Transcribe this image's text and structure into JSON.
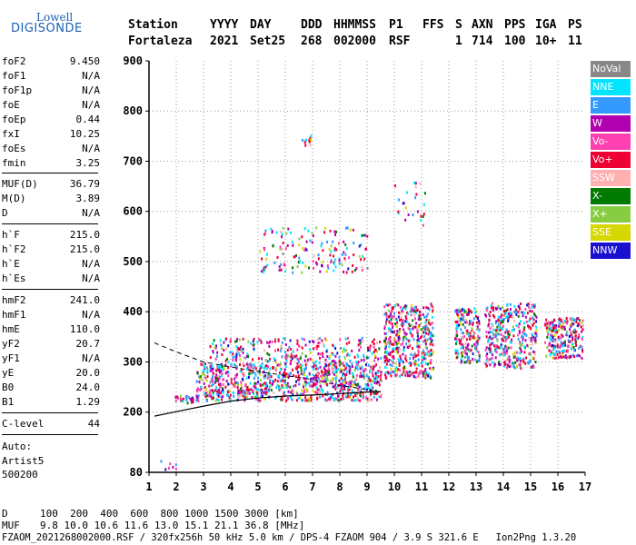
{
  "logo": {
    "line1": "Lowell",
    "line2": "DIGISONDE"
  },
  "header": {
    "columns": [
      "Station",
      "YYYY",
      "DAY",
      "DDD",
      "HHMMSS",
      "P1",
      "FFS",
      "S",
      "AXN",
      "PPS",
      "IGA",
      "PS"
    ],
    "values": [
      "Fortaleza",
      "2021",
      "Set25",
      "268",
      "002000",
      "RSF",
      "",
      "1",
      "714",
      "100",
      "10+",
      "11"
    ]
  },
  "parameters": {
    "group1": [
      {
        "name": "foF2",
        "value": "9.450"
      },
      {
        "name": "foF1",
        "value": "N/A"
      },
      {
        "name": "foF1p",
        "value": "N/A"
      },
      {
        "name": "foE",
        "value": "N/A"
      },
      {
        "name": "foEp",
        "value": "0.44"
      },
      {
        "name": "fxI",
        "value": "10.25"
      },
      {
        "name": "foEs",
        "value": "N/A"
      },
      {
        "name": "fmin",
        "value": "3.25"
      }
    ],
    "group2": [
      {
        "name": "MUF(D)",
        "value": "36.79"
      },
      {
        "name": "M(D)",
        "value": "3.89"
      },
      {
        "name": "D",
        "value": "N/A"
      }
    ],
    "group3": [
      {
        "name": "h`F",
        "value": "215.0"
      },
      {
        "name": "h`F2",
        "value": "215.0"
      },
      {
        "name": "h`E",
        "value": "N/A"
      },
      {
        "name": "h`Es",
        "value": "N/A"
      }
    ],
    "group4": [
      {
        "name": "hmF2",
        "value": "241.0"
      },
      {
        "name": "hmF1",
        "value": "N/A"
      },
      {
        "name": "hmE",
        "value": "110.0"
      },
      {
        "name": "yF2",
        "value": "20.7"
      },
      {
        "name": "yF1",
        "value": "N/A"
      },
      {
        "name": "yE",
        "value": "20.0"
      },
      {
        "name": "B0",
        "value": "24.0"
      },
      {
        "name": "B1",
        "value": "1.29"
      }
    ],
    "group5": [
      {
        "name": "C-level",
        "value": "44"
      }
    ]
  },
  "auto": {
    "line1": "Auto:",
    "line2": "Artist5",
    "line3": "500200"
  },
  "legend": [
    {
      "label": "NoVal",
      "color": "#888888"
    },
    {
      "label": "NNE",
      "color": "#00e5ff"
    },
    {
      "label": "E",
      "color": "#3399ff"
    },
    {
      "label": "W",
      "color": "#b000b0"
    },
    {
      "label": "Vo-",
      "color": "#ff40b0"
    },
    {
      "label": "Vo+",
      "color": "#ee0033"
    },
    {
      "label": "SSW",
      "color": "#ffb0b0"
    },
    {
      "label": "X-",
      "color": "#007a00"
    },
    {
      "label": "X+",
      "color": "#88cc44"
    },
    {
      "label": "SSE",
      "color": "#d6d600"
    },
    {
      "label": "NNW",
      "color": "#1a10d0"
    }
  ],
  "chart_data": {
    "type": "scatter",
    "xlim": [
      1,
      17
    ],
    "ylim": [
      80,
      900
    ],
    "x_ticks": [
      1,
      2,
      3,
      4,
      5,
      6,
      7,
      8,
      9,
      10,
      11,
      12,
      13,
      14,
      15,
      16,
      17
    ],
    "y_ticks": [
      80,
      200,
      300,
      400,
      500,
      600,
      700,
      800,
      900
    ],
    "grid": "dotted",
    "echo_regions": [
      {
        "x": [
          2.7,
          9.5
        ],
        "y": [
          225,
          300
        ],
        "density": 900
      },
      {
        "x": [
          3.2,
          9.5
        ],
        "y": [
          300,
          350
        ],
        "density": 260
      },
      {
        "x": [
          5.0,
          9.0
        ],
        "y": [
          480,
          570
        ],
        "density": 160
      },
      {
        "x": [
          6.6,
          7.0
        ],
        "y": [
          725,
          755
        ],
        "density": 12
      },
      {
        "x": [
          9.6,
          11.4
        ],
        "y": [
          270,
          420
        ],
        "density": 450
      },
      {
        "x": [
          10.0,
          11.1
        ],
        "y": [
          570,
          660
        ],
        "density": 25
      },
      {
        "x": [
          12.2,
          13.1
        ],
        "y": [
          300,
          410
        ],
        "density": 200
      },
      {
        "x": [
          13.3,
          15.2
        ],
        "y": [
          290,
          420
        ],
        "density": 380
      },
      {
        "x": [
          15.5,
          16.9
        ],
        "y": [
          310,
          390
        ],
        "density": 240
      },
      {
        "x": [
          3.4,
          5.3
        ],
        "y": [
          240,
          247
        ],
        "density": 30
      },
      {
        "x": [
          1.9,
          2.6
        ],
        "y": [
          220,
          235
        ],
        "density": 25
      },
      {
        "x": [
          1.4,
          2.0
        ],
        "y": [
          82,
          105
        ],
        "density": 8
      }
    ],
    "profile_curve_dashed": [
      [
        1.2,
        338
      ],
      [
        2,
        320
      ],
      [
        3,
        300
      ],
      [
        4,
        290
      ],
      [
        5,
        281
      ],
      [
        6,
        273
      ],
      [
        7,
        265
      ],
      [
        8,
        253
      ],
      [
        9,
        245
      ],
      [
        9.5,
        240
      ]
    ],
    "profile_curve_solid": [
      [
        1.2,
        192
      ],
      [
        2,
        201
      ],
      [
        3,
        212
      ],
      [
        4,
        222
      ],
      [
        5,
        228
      ],
      [
        6,
        232
      ],
      [
        7,
        234
      ],
      [
        8,
        237
      ],
      [
        9,
        240
      ],
      [
        9.5,
        241
      ]
    ]
  },
  "scale": {
    "d_label": "D",
    "d_values": "100  200  400  600  800 1000 1500 3000 [km]",
    "muf_label": "MUF",
    "muf_values": "9.8 10.0 10.6 11.6 13.0 15.1 21.1 36.8 [MHz]"
  },
  "footer": "FZAOM_2021268002000.RSF / 320fx256h 50 kHz 5.0 km / DPS-4 FZAOM 904 / 3.9 S 321.6 E   Ion2Png 1.3.20"
}
